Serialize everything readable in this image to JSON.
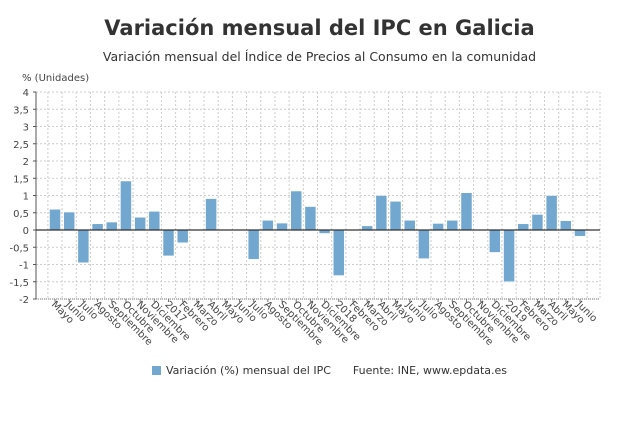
{
  "chart_data": {
    "type": "bar",
    "title": "Variación mensual del IPC en Galicia",
    "subtitle": "Variación mensual del Índice de Precios al Consumo en la comunidad",
    "ylabel": "% (Unidades)",
    "xlabel": "",
    "ylim": [
      -2,
      4
    ],
    "yticks": [
      "4",
      "3,5",
      "3",
      "2,5",
      "2",
      "1,5",
      "1",
      "0,5",
      "0",
      "-0,5",
      "-1",
      "-1,5",
      "-2"
    ],
    "ytick_values": [
      4,
      3.5,
      3,
      2.5,
      2,
      1.5,
      1,
      0.5,
      0,
      -0.5,
      -1,
      -1.5,
      -2
    ],
    "grid": true,
    "categories": [
      "Mayo",
      "Junio",
      "Julio",
      "Agosto",
      "Septiembre",
      "Octubre",
      "Noviembre",
      "Diciembre",
      "2017",
      "Febrero",
      "Marzo",
      "Abril",
      "Mayo",
      "Junio",
      "Julio",
      "Agosto",
      "Septiembre",
      "Octubre",
      "Noviembre",
      "Diciembre",
      "2018",
      "Febrero",
      "Marzo",
      "Abril",
      "Mayo",
      "Junio",
      "Julio",
      "Agosto",
      "Septiembre",
      "Octubre",
      "Noviembre",
      "Diciembre",
      "2019",
      "Febrero",
      "Marzo",
      "Abril",
      "Mayo",
      "Junio"
    ],
    "series": [
      {
        "name": "Variación (%) mensual del IPC",
        "color": "#72a8cf",
        "values": [
          0.6,
          0.52,
          -0.95,
          0.18,
          0.23,
          1.42,
          0.37,
          0.54,
          -0.75,
          -0.37,
          0.0,
          0.91,
          0.0,
          0.0,
          -0.85,
          0.28,
          0.2,
          1.13,
          0.68,
          -0.1,
          -1.32,
          0.0,
          0.12,
          1.0,
          0.83,
          0.28,
          -0.83,
          0.19,
          0.28,
          1.08,
          -0.02,
          -0.65,
          -1.5,
          0.18,
          0.45,
          1.0,
          0.27,
          -0.18
        ]
      }
    ],
    "legend_position": "bottom",
    "source": "Fuente: INE, www.epdata.es"
  }
}
